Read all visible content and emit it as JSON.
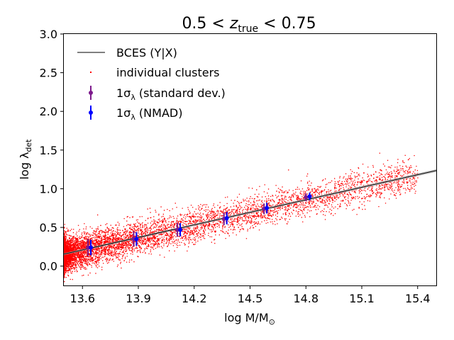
{
  "chart_data": {
    "type": "scatter",
    "title_parts": {
      "lhs": "0.5 < ",
      "var": "z",
      "sub": "true",
      "rhs": " < 0.75"
    },
    "xlabel_parts": {
      "main": "log M/M",
      "sub": "⊙"
    },
    "ylabel_parts": {
      "main": "log λ",
      "sub": "det"
    },
    "xlim": [
      13.5,
      15.5
    ],
    "ylim": [
      -0.25,
      3.0
    ],
    "xticks": [
      "13.6",
      "13.9",
      "14.2",
      "14.5",
      "14.8",
      "15.1",
      "15.4"
    ],
    "yticks": [
      "0.0",
      "0.5",
      "1.0",
      "1.5",
      "2.0",
      "2.5",
      "3.0"
    ],
    "legend_position": "upper-left",
    "legend": {
      "fit": "BCES (Y|X)",
      "scatter": "individual clusters",
      "std": {
        "prefix": "1σ",
        "sub": "λ",
        "suffix": " (standard dev.)"
      },
      "nmad": {
        "prefix": "1σ",
        "sub": "λ",
        "suffix": " (NMAD)"
      }
    },
    "fit_line": {
      "slope": 0.54,
      "intercept": -7.135,
      "band": 0.012
    },
    "scatter_model": {
      "count": 9000,
      "sigma": 0.09,
      "x_min": 13.5,
      "x_max": 15.4,
      "color": "#ff0000"
    },
    "errorbars_std": {
      "x": [
        13.63,
        13.875,
        14.11,
        14.36,
        14.575,
        14.8
      ],
      "y": [
        0.24,
        0.35,
        0.47,
        0.61,
        0.74,
        0.89
      ],
      "err": [
        0.11,
        0.1,
        0.09,
        0.08,
        0.07,
        0.05
      ],
      "color": "#7d1a8c"
    },
    "errorbars_nmad": {
      "x": [
        13.645,
        13.89,
        14.125,
        14.375,
        14.59,
        14.82
      ],
      "y": [
        0.24,
        0.35,
        0.47,
        0.62,
        0.75,
        0.9
      ],
      "err": [
        0.1,
        0.09,
        0.085,
        0.08,
        0.07,
        0.05
      ],
      "color": "#0000ff"
    },
    "fit_color": "#000000"
  }
}
